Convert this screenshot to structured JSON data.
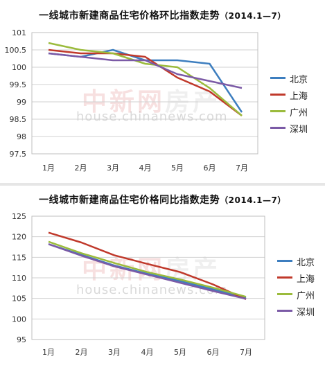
{
  "chart_data": [
    {
      "type": "line",
      "title": "一线城市新建商品住宅价格环比指数走势",
      "date_label": "（2014.1—7）",
      "categories": [
        "1月",
        "2月",
        "3月",
        "4月",
        "5月",
        "6月",
        "7月"
      ],
      "ylim": [
        97.5,
        101
      ],
      "yticks": [
        "97.5",
        "98",
        "98.5",
        "99",
        "99.5",
        "100",
        "100.5",
        "101"
      ],
      "grid": true,
      "legend": "right",
      "series": [
        {
          "name": "北京",
          "color": "#3d7ebf",
          "values": [
            100.4,
            100.3,
            100.5,
            100.2,
            100.2,
            100.1,
            98.7
          ]
        },
        {
          "name": "上海",
          "color": "#c0392b",
          "values": [
            100.5,
            100.4,
            100.4,
            100.3,
            99.7,
            99.3,
            98.6
          ]
        },
        {
          "name": "广州",
          "color": "#9bbb3c",
          "values": [
            100.7,
            100.5,
            100.4,
            100.1,
            100.0,
            99.4,
            98.6
          ]
        },
        {
          "name": "深圳",
          "color": "#7b5aa6",
          "values": [
            100.4,
            100.3,
            100.2,
            100.2,
            99.8,
            99.6,
            99.4
          ]
        }
      ],
      "watermark": {
        "logo": "中新网",
        "sub": "房产",
        "url": "house.chinanews.com"
      }
    },
    {
      "type": "line",
      "title": "一线城市新建商品住宅价格同比指数走势",
      "date_label": "（2014.1—7）",
      "categories": [
        "1月",
        "2月",
        "3月",
        "4月",
        "5月",
        "6月",
        "7月"
      ],
      "ylim": [
        95,
        125
      ],
      "yticks": [
        "95",
        "100",
        "105",
        "110",
        "115",
        "120",
        "125"
      ],
      "grid": true,
      "legend": "right",
      "series": [
        {
          "name": "北京",
          "color": "#3d7ebf",
          "values": [
            118.2,
            115.6,
            113.0,
            111.0,
            109.2,
            107.2,
            105.1
          ]
        },
        {
          "name": "上海",
          "color": "#c0392b",
          "values": [
            121.0,
            118.6,
            115.5,
            113.4,
            111.4,
            108.4,
            104.8
          ]
        },
        {
          "name": "广州",
          "color": "#9bbb3c",
          "values": [
            118.8,
            116.0,
            113.6,
            111.4,
            109.6,
            107.6,
            105.4
          ]
        },
        {
          "name": "深圳",
          "color": "#7b5aa6",
          "values": [
            118.2,
            115.4,
            112.8,
            110.8,
            108.8,
            106.8,
            104.9
          ]
        }
      ],
      "watermark": {
        "logo": "中新网",
        "sub": "房产",
        "url": "house.chinanews.com"
      }
    }
  ]
}
